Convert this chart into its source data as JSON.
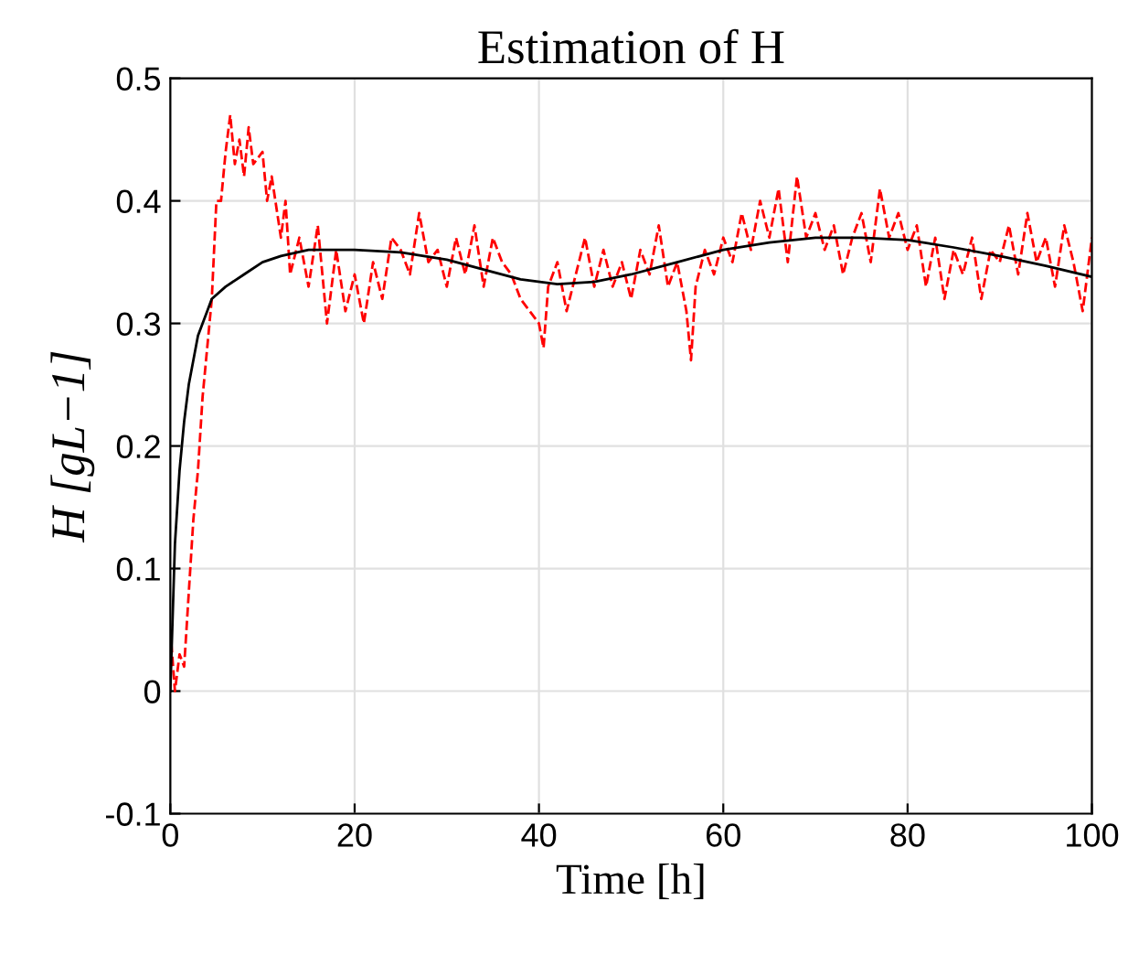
{
  "chart_data": {
    "type": "line",
    "title": "Estimation of H",
    "xlabel": "Time [h]",
    "ylabel": "H [gL−1]",
    "xlim": [
      0,
      100
    ],
    "ylim": [
      -0.1,
      0.5
    ],
    "xticks": [
      0,
      20,
      40,
      60,
      80,
      100
    ],
    "yticks": [
      -0.1,
      0,
      0.1,
      0.2,
      0.3,
      0.4,
      0.5
    ],
    "grid": true,
    "marker": "none",
    "series": [
      {
        "color": "#ff0000",
        "line_style": "dashed",
        "x": [
          0,
          0.5,
          1,
          1.5,
          2,
          2.5,
          3,
          3.5,
          4,
          4.5,
          5,
          5.5,
          6,
          6.5,
          7,
          7.5,
          8,
          8.5,
          9,
          10,
          10.5,
          11,
          12,
          12.5,
          13,
          14,
          15,
          16,
          17,
          18,
          19,
          20,
          21,
          22,
          23,
          24,
          25,
          26,
          27,
          28,
          29,
          30,
          31,
          32,
          33,
          34,
          35,
          36,
          37,
          38,
          39,
          40,
          40.5,
          41,
          42,
          43,
          44,
          45,
          46,
          47,
          48,
          49,
          50,
          51,
          52,
          53,
          54,
          55,
          56,
          56.5,
          57,
          58,
          59,
          60,
          61,
          62,
          63,
          64,
          65,
          66,
          67,
          68,
          69,
          70,
          71,
          72,
          73,
          74,
          75,
          76,
          77,
          78,
          79,
          80,
          81,
          82,
          83,
          84,
          85,
          86,
          87,
          88,
          89,
          90,
          91,
          92,
          93,
          94,
          95,
          96,
          97,
          98,
          99,
          100
        ],
        "values": [
          0.05,
          0.0,
          0.03,
          0.02,
          0.08,
          0.14,
          0.18,
          0.24,
          0.28,
          0.32,
          0.4,
          0.4,
          0.44,
          0.47,
          0.43,
          0.45,
          0.42,
          0.46,
          0.43,
          0.44,
          0.4,
          0.42,
          0.37,
          0.4,
          0.34,
          0.37,
          0.33,
          0.38,
          0.3,
          0.36,
          0.31,
          0.34,
          0.3,
          0.35,
          0.32,
          0.37,
          0.36,
          0.34,
          0.39,
          0.35,
          0.36,
          0.33,
          0.37,
          0.34,
          0.38,
          0.33,
          0.37,
          0.35,
          0.34,
          0.32,
          0.31,
          0.3,
          0.28,
          0.33,
          0.35,
          0.31,
          0.34,
          0.37,
          0.33,
          0.36,
          0.33,
          0.35,
          0.32,
          0.36,
          0.34,
          0.38,
          0.33,
          0.35,
          0.31,
          0.27,
          0.33,
          0.36,
          0.34,
          0.37,
          0.35,
          0.39,
          0.36,
          0.4,
          0.37,
          0.41,
          0.35,
          0.42,
          0.37,
          0.39,
          0.36,
          0.38,
          0.34,
          0.37,
          0.39,
          0.35,
          0.41,
          0.37,
          0.39,
          0.36,
          0.38,
          0.33,
          0.37,
          0.32,
          0.36,
          0.34,
          0.37,
          0.32,
          0.36,
          0.35,
          0.38,
          0.34,
          0.39,
          0.35,
          0.37,
          0.33,
          0.38,
          0.35,
          0.31,
          0.37
        ]
      },
      {
        "color": "#000000",
        "line_style": "solid",
        "x": [
          0,
          0.5,
          1,
          1.5,
          2,
          3,
          4,
          4.5,
          6,
          8,
          10,
          12,
          15,
          18,
          20,
          25,
          30,
          35,
          38,
          42,
          46,
          50,
          55,
          60,
          65,
          70,
          75,
          80,
          85,
          90,
          95,
          100
        ],
        "values": [
          0.0,
          0.12,
          0.18,
          0.22,
          0.25,
          0.29,
          0.31,
          0.32,
          0.33,
          0.34,
          0.35,
          0.355,
          0.36,
          0.36,
          0.36,
          0.358,
          0.352,
          0.342,
          0.336,
          0.332,
          0.334,
          0.34,
          0.35,
          0.36,
          0.366,
          0.37,
          0.37,
          0.368,
          0.362,
          0.355,
          0.347,
          0.338
        ]
      }
    ]
  }
}
